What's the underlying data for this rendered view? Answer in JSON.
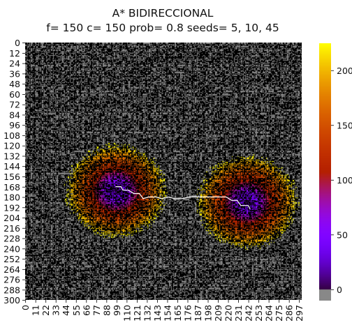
{
  "chart_data": {
    "type": "heatmap",
    "title": "A* BIDIRECCIONAL",
    "subtitle": "f= 150 c= 150 prob= 0.8 seeds= 5, 10, 45",
    "grid_size": [
      300,
      300
    ],
    "y_ticks": [
      "0",
      "12",
      "24",
      "36",
      "48",
      "60",
      "72",
      "84",
      "96",
      "108",
      "120",
      "132",
      "144",
      "156",
      "168",
      "180",
      "192",
      "204",
      "216",
      "228",
      "240",
      "252",
      "264",
      "276",
      "288",
      "300"
    ],
    "x_ticks": [
      "0",
      "11",
      "22",
      "33",
      "44",
      "55",
      "66",
      "77",
      "88",
      "99",
      "110",
      "121",
      "132",
      "143",
      "154",
      "165",
      "176",
      "187",
      "198",
      "209",
      "220",
      "231",
      "242",
      "253",
      "264",
      "275",
      "286",
      "297"
    ],
    "colorbar": {
      "colormap": "gnuplot",
      "ticks": [
        0,
        50,
        100,
        150,
        200
      ],
      "range": [
        -10,
        225
      ],
      "unexplored_value": -10,
      "unexplored_color": "#888888",
      "wall_color": "#000000"
    },
    "search_regions": [
      {
        "name": "",
        "center": [
          98,
          172
        ],
        "radius": 52,
        "max_value": 225
      },
      {
        "name": "",
        "center": [
          240,
          185
        ],
        "radius": 52,
        "max_value": 225
      }
    ],
    "path": [
      [
        98,
        168
      ],
      [
        104,
        168
      ],
      [
        106,
        172
      ],
      [
        112,
        172
      ],
      [
        118,
        176
      ],
      [
        124,
        176
      ],
      [
        128,
        182
      ],
      [
        134,
        180
      ],
      [
        142,
        180
      ],
      [
        148,
        182
      ],
      [
        156,
        180
      ],
      [
        162,
        182
      ],
      [
        170,
        182
      ],
      [
        178,
        180
      ],
      [
        186,
        180
      ],
      [
        194,
        180
      ],
      [
        202,
        180
      ],
      [
        210,
        180
      ],
      [
        218,
        180
      ],
      [
        224,
        184
      ],
      [
        230,
        184
      ],
      [
        234,
        190
      ],
      [
        242,
        190
      ],
      [
        244,
        194
      ]
    ],
    "colors": {
      "path": "#ffffff",
      "free_cell": "#888888",
      "wall": "#000000"
    }
  }
}
